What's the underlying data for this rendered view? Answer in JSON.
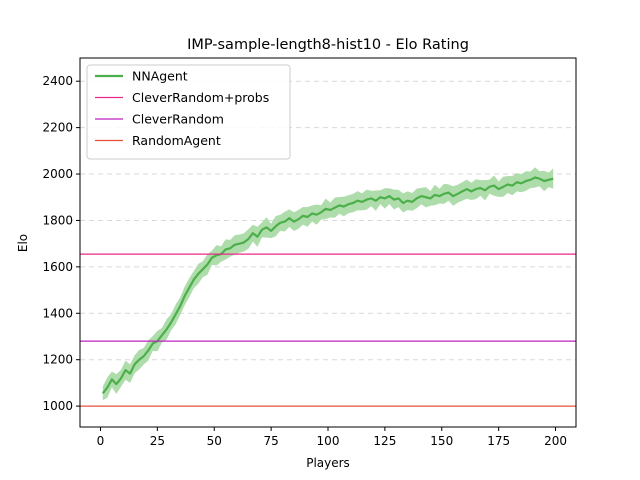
{
  "chart_data": {
    "type": "line",
    "title": "IMP-sample-length8-hist10 - Elo Rating",
    "xlabel": "Players",
    "ylabel": "Elo",
    "xlim": [
      -9,
      209
    ],
    "ylim": [
      910,
      2500
    ],
    "xticks": [
      0,
      25,
      50,
      75,
      100,
      125,
      150,
      175,
      200
    ],
    "yticks": [
      1000,
      1200,
      1400,
      1600,
      1800,
      2000,
      2200,
      2400
    ],
    "grid": "horizontal dashed",
    "legend_position": "top-left",
    "series": [
      {
        "name": "NNAgent",
        "color": "#4daf4a",
        "band_color": "#a5d9a2",
        "x": [
          1,
          3,
          5,
          7,
          9,
          11,
          13,
          15,
          17,
          19,
          21,
          23,
          25,
          27,
          29,
          31,
          33,
          35,
          37,
          39,
          41,
          43,
          45,
          47,
          49,
          51,
          53,
          55,
          57,
          59,
          61,
          63,
          65,
          67,
          69,
          71,
          73,
          75,
          77,
          79,
          81,
          83,
          85,
          87,
          89,
          91,
          93,
          95,
          97,
          99,
          101,
          103,
          105,
          107,
          109,
          111,
          113,
          115,
          117,
          119,
          121,
          123,
          125,
          127,
          129,
          131,
          133,
          135,
          137,
          139,
          141,
          143,
          145,
          147,
          149,
          151,
          153,
          155,
          157,
          159,
          161,
          163,
          165,
          167,
          169,
          171,
          173,
          175,
          177,
          179,
          181,
          183,
          185,
          187,
          189,
          191,
          193,
          195,
          197,
          199
        ],
        "y": [
          1055,
          1080,
          1115,
          1095,
          1120,
          1155,
          1140,
          1180,
          1200,
          1215,
          1240,
          1270,
          1280,
          1305,
          1330,
          1360,
          1395,
          1430,
          1475,
          1510,
          1545,
          1570,
          1590,
          1610,
          1640,
          1650,
          1655,
          1675,
          1680,
          1695,
          1700,
          1705,
          1720,
          1745,
          1730,
          1760,
          1770,
          1755,
          1775,
          1790,
          1795,
          1810,
          1795,
          1805,
          1820,
          1815,
          1830,
          1825,
          1835,
          1850,
          1845,
          1855,
          1865,
          1860,
          1870,
          1875,
          1885,
          1880,
          1890,
          1895,
          1885,
          1900,
          1895,
          1905,
          1890,
          1895,
          1875,
          1885,
          1880,
          1895,
          1905,
          1900,
          1895,
          1910,
          1905,
          1915,
          1920,
          1905,
          1915,
          1925,
          1935,
          1925,
          1935,
          1940,
          1930,
          1945,
          1950,
          1935,
          1945,
          1955,
          1950,
          1965,
          1960,
          1970,
          1975,
          1985,
          1980,
          1970,
          1975,
          1980
        ],
        "band_halfwidth": 40
      },
      {
        "name": "CleverRandom+probs",
        "color": "#e7298a",
        "type": "hline",
        "value": 1655
      },
      {
        "name": "CleverRandom",
        "color": "#c020c0",
        "type": "hline",
        "value": 1280
      },
      {
        "name": "RandomAgent",
        "color": "#e8503c",
        "type": "hline",
        "value": 1000
      }
    ]
  }
}
